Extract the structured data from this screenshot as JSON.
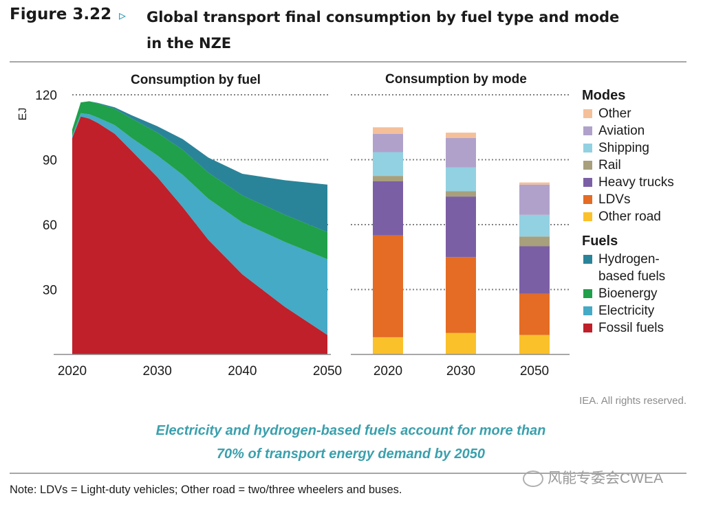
{
  "figure": {
    "label": "Figure 3.22",
    "arrow": "▹",
    "title_line1": "Global transport final consumption by fuel type and mode",
    "title_line2": "in the NZE"
  },
  "chart_data": [
    {
      "type": "area",
      "title": "Consumption by fuel",
      "ylabel": "EJ",
      "xlabel": "",
      "x": [
        2020,
        2021,
        2022,
        2023,
        2025,
        2027,
        2030,
        2033,
        2036,
        2040,
        2045,
        2050
      ],
      "ylim": [
        0,
        120
      ],
      "yticks": [
        30,
        60,
        90,
        120
      ],
      "xticks": [
        2020,
        2030,
        2040,
        2050
      ],
      "stack_order": "bottom-to-top",
      "series": [
        {
          "name": "Fossil fuels",
          "color": "#c0202a",
          "values": [
            100,
            110,
            109,
            107,
            102,
            94,
            82,
            68,
            53,
            37,
            22,
            9
          ]
        },
        {
          "name": "Electricity",
          "color": "#44aac6",
          "values": [
            1,
            1.5,
            2,
            2.5,
            4,
            6,
            10,
            15,
            19,
            24,
            30,
            35
          ]
        },
        {
          "name": "Bioenergy",
          "color": "#20a04a",
          "values": [
            3,
            5,
            6,
            6.5,
            7.5,
            9,
            10.5,
            11.5,
            12,
            12.5,
            12.5,
            12.5
          ]
        },
        {
          "name": "Hydrogen-based fuels",
          "color": "#2a8499",
          "values": [
            0,
            0,
            0,
            0.3,
            0.7,
            1.5,
            3,
            5,
            7,
            10,
            16,
            22
          ]
        }
      ]
    },
    {
      "type": "bar",
      "stacked": true,
      "title": "Consumption by mode",
      "categories": [
        "2020",
        "2030",
        "2050"
      ],
      "ylim": [
        0,
        120
      ],
      "series": [
        {
          "name": "Other road",
          "color": "#fbc12b",
          "values": [
            8,
            10,
            9
          ]
        },
        {
          "name": "LDVs",
          "color": "#e46c24",
          "values": [
            47,
            35,
            19
          ]
        },
        {
          "name": "Heavy trucks",
          "color": "#7b5fa5",
          "values": [
            25,
            28,
            22
          ]
        },
        {
          "name": "Rail",
          "color": "#a8a07c",
          "values": [
            2.5,
            2.5,
            4.5
          ]
        },
        {
          "name": "Shipping",
          "color": "#92d1e1",
          "values": [
            11,
            11,
            10
          ]
        },
        {
          "name": "Aviation",
          "color": "#b0a1cb",
          "values": [
            8.5,
            13.5,
            14
          ]
        },
        {
          "name": "Other",
          "color": "#f4c09a",
          "values": [
            3,
            2.5,
            1
          ]
        }
      ]
    }
  ],
  "legend": {
    "modes_title": "Modes",
    "modes": [
      {
        "label": "Other",
        "color": "#f4c09a"
      },
      {
        "label": "Aviation",
        "color": "#b0a1cb"
      },
      {
        "label": "Shipping",
        "color": "#92d1e1"
      },
      {
        "label": "Rail",
        "color": "#a8a07c"
      },
      {
        "label": "Heavy trucks",
        "color": "#7b5fa5"
      },
      {
        "label": "LDVs",
        "color": "#e46c24"
      },
      {
        "label": "Other road",
        "color": "#fbc12b"
      }
    ],
    "fuels_title": "Fuels",
    "fuels": [
      {
        "label_line1": "Hydrogen-",
        "label_line2": "based fuels",
        "color": "#2a8499"
      },
      {
        "label_line1": "Bioenergy",
        "color": "#20a04a"
      },
      {
        "label_line1": "Electricity",
        "color": "#44aac6"
      },
      {
        "label_line1": "Fossil fuels",
        "color": "#c0202a"
      }
    ]
  },
  "rights": "IEA. All rights reserved.",
  "caption_line1": "Electricity and hydrogen-based fuels account for more than",
  "caption_line2": "70% of transport energy demand by 2050",
  "note": "Note: LDVs = Light-duty vehicles; Other road = two/three wheelers and buses.",
  "watermark": "风能专委会CWEA"
}
